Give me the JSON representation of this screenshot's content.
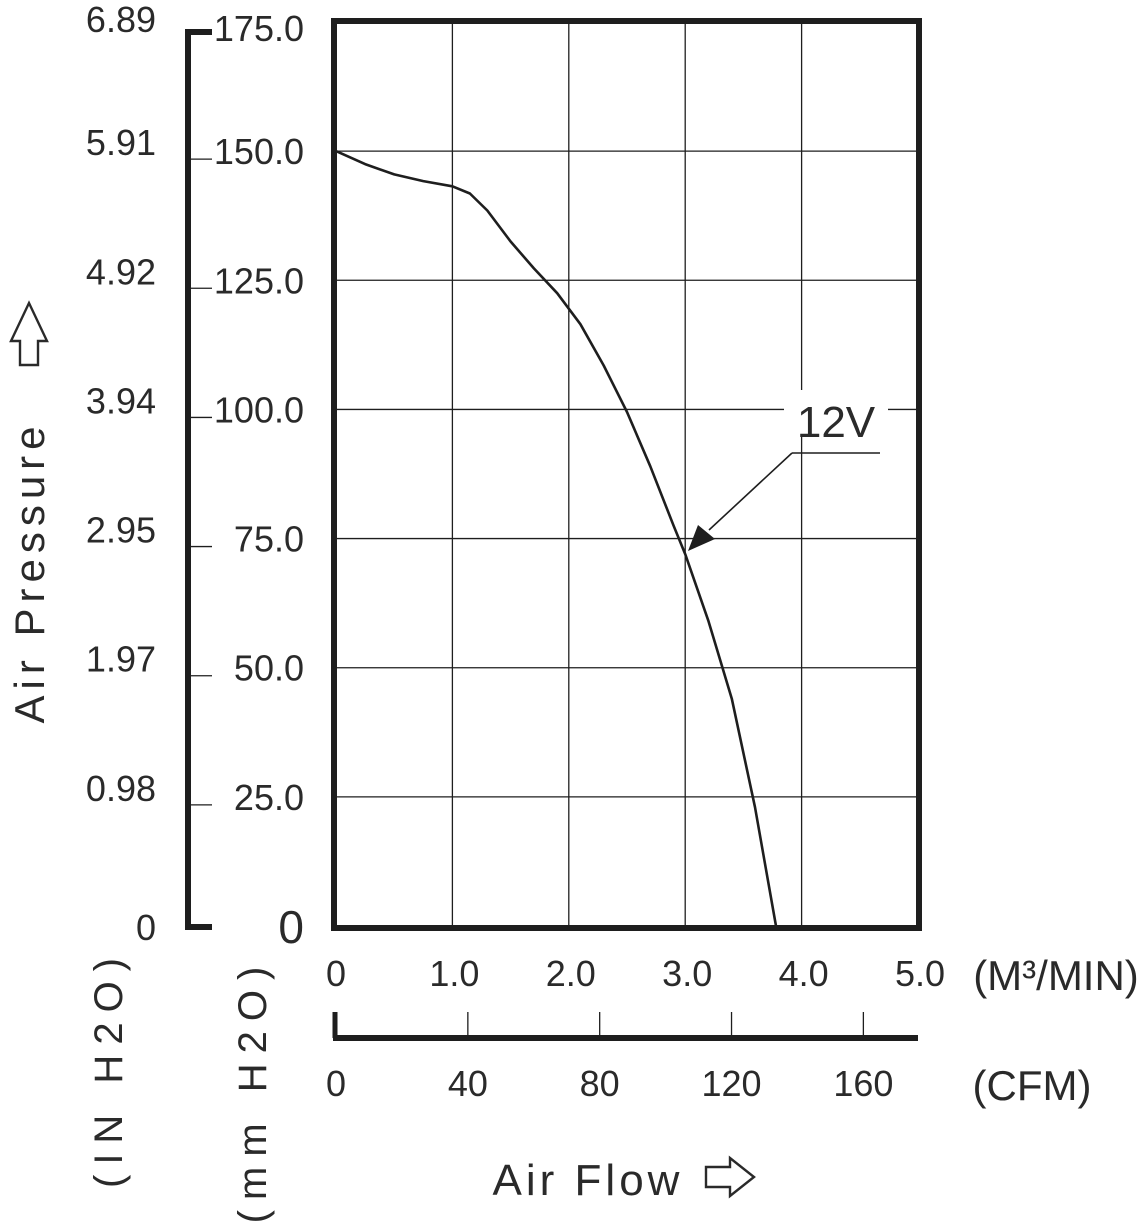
{
  "colors": {
    "line": "#1e1e1e",
    "grid": "#1e1e1e",
    "axis_text": "#2a2a2a"
  },
  "icons": {
    "up_arrow": "up-arrow-outline-icon",
    "right_arrow": "right-arrow-outline-icon"
  },
  "chart_data": {
    "type": "line",
    "xlabel": "Air Flow",
    "ylabel": "Air Pressure",
    "xlim": [
      0,
      5.0
    ],
    "ylim": [
      0,
      175.0
    ],
    "grid": true,
    "x_unit_primary": "(M³/MIN)",
    "x_unit_secondary": "(CFM)",
    "y_unit_primary": "(mm H2O)",
    "y_unit_secondary": "(IN H2O)",
    "x_ticks": [
      "0",
      "1.0",
      "2.0",
      "3.0",
      "4.0",
      "5.0"
    ],
    "x_ticks_values": [
      0,
      1.0,
      2.0,
      3.0,
      4.0,
      5.0
    ],
    "x2_ticks": [
      "0",
      "40",
      "80",
      "120",
      "160"
    ],
    "x2_ticks_cfm": [
      0,
      40,
      80,
      120,
      160
    ],
    "y_ticks": [
      "0",
      "25.0",
      "50.0",
      "75.0",
      "100.0",
      "125.0",
      "150.0",
      "175.0"
    ],
    "y_ticks_values": [
      0,
      25.0,
      50.0,
      75.0,
      100.0,
      125.0,
      150.0,
      175.0
    ],
    "y2_ticks": [
      "0",
      "0.98",
      "1.97",
      "2.95",
      "3.94",
      "4.92",
      "5.91",
      "6.89"
    ],
    "series": [
      {
        "name": "12V",
        "x": [
          0,
          0.25,
          0.5,
          0.75,
          1.0,
          1.15,
          1.3,
          1.5,
          1.7,
          1.9,
          2.1,
          2.3,
          2.5,
          2.7,
          2.9,
          3.0,
          3.2,
          3.4,
          3.6,
          3.78
        ],
        "y": [
          150,
          147.5,
          145.5,
          144.2,
          143.2,
          141.8,
          138.5,
          132.5,
          127.3,
          122.5,
          116.5,
          108.5,
          99.5,
          89,
          77.5,
          72,
          59,
          44,
          23,
          0
        ]
      }
    ],
    "annotations": [
      {
        "text": "12V",
        "points_to": [
          3.02,
          73
        ]
      }
    ]
  }
}
